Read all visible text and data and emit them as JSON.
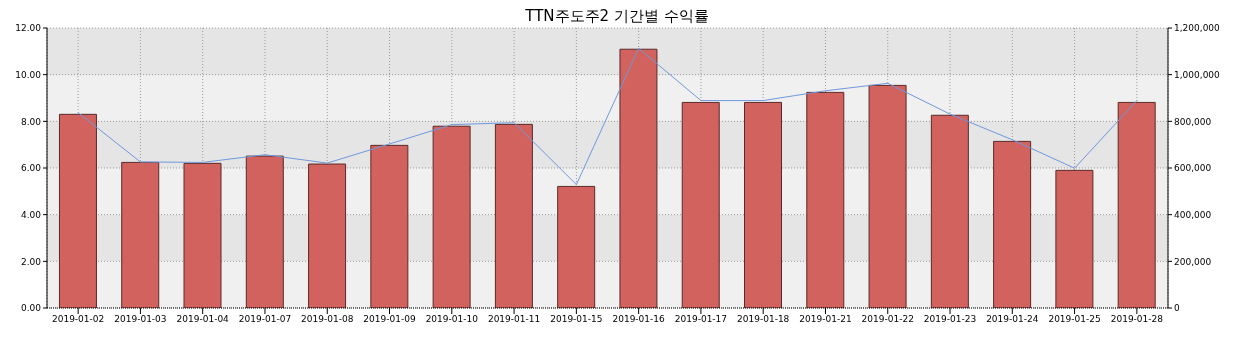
{
  "chart_data": {
    "type": "bar",
    "title": "TTN주도주2 기간별  수익률",
    "categories": [
      "2019-01-02",
      "2019-01-03",
      "2019-01-04",
      "2019-01-07",
      "2019-01-08",
      "2019-01-09",
      "2019-01-10",
      "2019-01-11",
      "2019-01-15",
      "2019-01-16",
      "2019-01-17",
      "2019-01-18",
      "2019-01-21",
      "2019-01-22",
      "2019-01-23",
      "2019-01-24",
      "2019-01-25",
      "2019-01-28"
    ],
    "series": [
      {
        "axis": "y2",
        "color": "#d2625e",
        "values": [
          830000,
          624000,
          620000,
          651000,
          617000,
          697000,
          779000,
          787000,
          521000,
          1109000,
          881000,
          881000,
          924000,
          954000,
          826000,
          714000,
          590000,
          881000
        ]
      },
      {
        "type": "line",
        "axis": "y",
        "color": "#6f98dc",
        "values": [
          8.37,
          6.26,
          6.24,
          6.57,
          6.21,
          7.03,
          7.86,
          7.94,
          5.29,
          11.13,
          8.89,
          8.89,
          9.31,
          9.63,
          8.31,
          7.21,
          5.99,
          8.89
        ]
      }
    ],
    "ylim": [
      0,
      12
    ],
    "yticks": [
      {
        "value": 0,
        "label": "0.00"
      },
      {
        "value": 2,
        "label": "2.00"
      },
      {
        "value": 4,
        "label": "4.00"
      },
      {
        "value": 6,
        "label": "6.00"
      },
      {
        "value": 8,
        "label": "8.00"
      },
      {
        "value": 10,
        "label": "10.00"
      },
      {
        "value": 12,
        "label": "12.00"
      }
    ],
    "y2lim": [
      0,
      1200000
    ],
    "y2ticks": [
      0,
      {
        "value": 200000,
        "label": "200,000"
      },
      {
        "value": 400000,
        "label": "400,000"
      },
      {
        "value": 600000,
        "label": "600,000"
      },
      {
        "value": 800000,
        "label": "800,000"
      },
      {
        "value": 1000000,
        "label": "1,000,000"
      },
      {
        "value": 1200000,
        "label": "1,200,000"
      }
    ],
    "grid": true
  }
}
